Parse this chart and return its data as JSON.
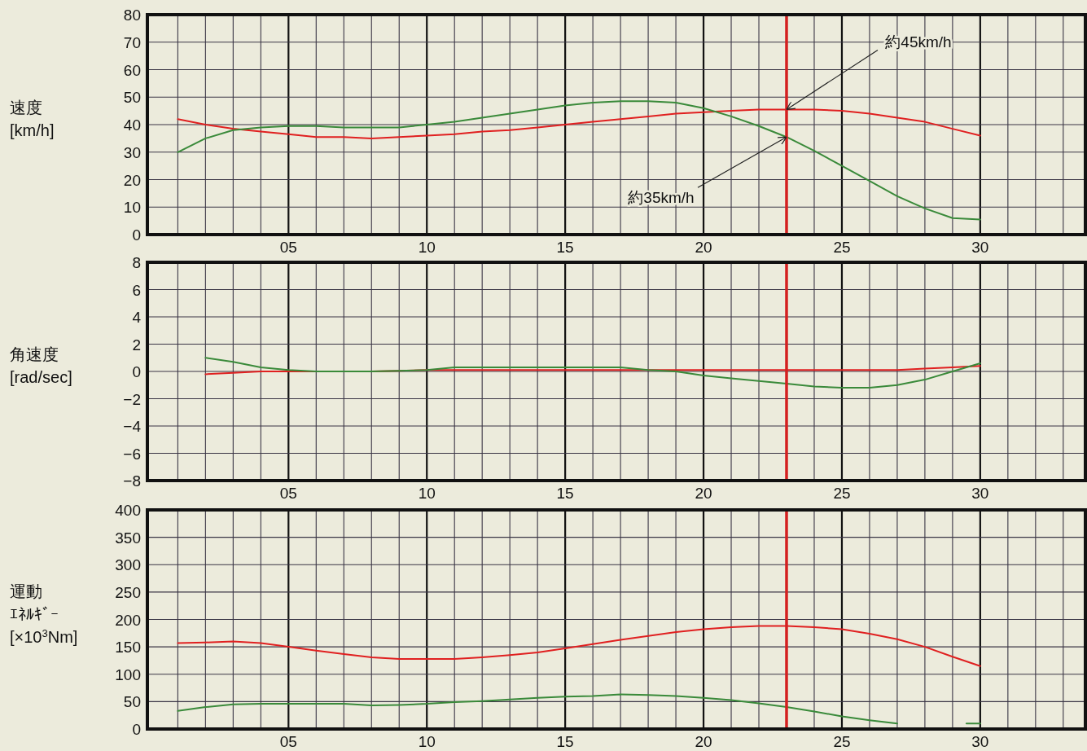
{
  "chart_data": [
    {
      "type": "line",
      "ylabel": "速度\n[km/h]",
      "grid": true,
      "xlim": [
        -0.1,
        33.8
      ],
      "ylim": [
        0,
        80
      ],
      "xticks": [
        {
          "value": 1,
          "label": null
        },
        {
          "value": 2,
          "label": null
        },
        {
          "value": 3,
          "label": null
        },
        {
          "value": 4,
          "label": null
        },
        {
          "value": 5,
          "label": "05"
        },
        {
          "value": 6,
          "label": null
        },
        {
          "value": 7,
          "label": null
        },
        {
          "value": 8,
          "label": null
        },
        {
          "value": 9,
          "label": null
        },
        10,
        {
          "value": 11,
          "label": null
        },
        {
          "value": 12,
          "label": null
        },
        {
          "value": 13,
          "label": null
        },
        {
          "value": 14,
          "label": null
        },
        15,
        {
          "value": 16,
          "label": null
        },
        {
          "value": 17,
          "label": null
        },
        {
          "value": 18,
          "label": null
        },
        {
          "value": 19,
          "label": null
        },
        20,
        {
          "value": 21,
          "label": null
        },
        {
          "value": 22,
          "label": null
        },
        {
          "value": 23,
          "label": null
        },
        {
          "value": 24,
          "label": null
        },
        25,
        {
          "value": 26,
          "label": null
        },
        {
          "value": 27,
          "label": null
        },
        {
          "value": 28,
          "label": null
        },
        {
          "value": 29,
          "label": null
        },
        30,
        {
          "value": 31,
          "label": null
        },
        {
          "value": 32,
          "label": null
        },
        {
          "value": 33,
          "label": null
        }
      ],
      "yticks": [
        0,
        10,
        20,
        30,
        40,
        50,
        60,
        70,
        80
      ],
      "x": [
        1,
        2,
        3,
        4,
        5,
        6,
        7,
        8,
        9,
        10,
        11,
        12,
        13,
        14,
        15,
        16,
        17,
        18,
        19,
        20,
        21,
        22,
        23,
        24,
        25,
        26,
        27,
        28,
        29,
        30
      ],
      "series": [
        {
          "color": "#e02020",
          "values": [
            42,
            40,
            38.5,
            37.5,
            36.5,
            35.5,
            35.5,
            35,
            35.5,
            36,
            36.5,
            37.5,
            38,
            39,
            40,
            41,
            42,
            43,
            44,
            44.5,
            45,
            45.5,
            45.5,
            45.5,
            45,
            44,
            42.5,
            41,
            38.5,
            36
          ]
        },
        {
          "color": "#3a8a3a",
          "values": [
            30,
            35,
            38,
            39,
            39.5,
            39.5,
            39,
            39,
            39,
            40,
            41,
            42.5,
            44,
            45.5,
            47,
            48,
            48.5,
            48.5,
            48,
            46,
            43,
            39.5,
            35.5,
            30.5,
            25,
            19.5,
            14,
            9.5,
            6,
            5.5
          ]
        }
      ],
      "ref_lines": [
        {
          "axis": "x",
          "value": 23,
          "color": "#d42020"
        }
      ],
      "annotations": [
        {
          "text": "約45km/h",
          "x": 23,
          "y": 45.5
        },
        {
          "text": "約35km/h",
          "x": 23,
          "y": 35.5
        }
      ]
    },
    {
      "type": "line",
      "ylabel": "角速度\n[rad/sec]",
      "grid": true,
      "xlim": [
        -0.1,
        33.8
      ],
      "ylim": [
        -8,
        8
      ],
      "xticks": [
        {
          "value": 1,
          "label": null
        },
        {
          "value": 2,
          "label": null
        },
        {
          "value": 3,
          "label": null
        },
        {
          "value": 4,
          "label": null
        },
        {
          "value": 5,
          "label": "05"
        },
        {
          "value": 6,
          "label": null
        },
        {
          "value": 7,
          "label": null
        },
        {
          "value": 8,
          "label": null
        },
        {
          "value": 9,
          "label": null
        },
        10,
        {
          "value": 11,
          "label": null
        },
        {
          "value": 12,
          "label": null
        },
        {
          "value": 13,
          "label": null
        },
        {
          "value": 14,
          "label": null
        },
        15,
        {
          "value": 16,
          "label": null
        },
        {
          "value": 17,
          "label": null
        },
        {
          "value": 18,
          "label": null
        },
        {
          "value": 19,
          "label": null
        },
        20,
        {
          "value": 21,
          "label": null
        },
        {
          "value": 22,
          "label": null
        },
        {
          "value": 23,
          "label": null
        },
        {
          "value": 24,
          "label": null
        },
        25,
        {
          "value": 26,
          "label": null
        },
        {
          "value": 27,
          "label": null
        },
        {
          "value": 28,
          "label": null
        },
        {
          "value": 29,
          "label": null
        },
        30,
        {
          "value": 31,
          "label": null
        },
        {
          "value": 32,
          "label": null
        },
        {
          "value": 33,
          "label": null
        }
      ],
      "yticks": [
        -8,
        -6,
        -4,
        -2,
        0,
        2,
        4,
        6,
        8
      ],
      "x": [
        2,
        3,
        4,
        5,
        6,
        8,
        10,
        11,
        15,
        17,
        18,
        19,
        20,
        21,
        22,
        23,
        24,
        25,
        26,
        27,
        28,
        29,
        30
      ],
      "series": [
        {
          "color": "#e02020",
          "values": [
            -0.2,
            -0.1,
            0,
            0,
            0,
            0,
            0.1,
            0.1,
            0.1,
            0.1,
            0.1,
            0.1,
            0.1,
            0.1,
            0.1,
            0.1,
            0.1,
            0.1,
            0.1,
            0.1,
            0.2,
            0.3,
            0.4
          ]
        },
        {
          "color": "#3a8a3a",
          "values": [
            1.0,
            0.7,
            0.3,
            0.1,
            0,
            0,
            0.1,
            0.3,
            0.3,
            0.3,
            0.1,
            0,
            -0.3,
            -0.5,
            -0.7,
            -0.9,
            -1.1,
            -1.2,
            -1.2,
            -1.0,
            -0.6,
            0,
            0.6
          ]
        }
      ],
      "ref_lines": [
        {
          "axis": "x",
          "value": 23,
          "color": "#d42020"
        }
      ]
    },
    {
      "type": "line",
      "ylabel": "運動ｴﾈﾙｷﾞｰ\n[×10$^{3}$Nm]",
      "grid": true,
      "xlim": [
        -0.1,
        33.8
      ],
      "ylim": [
        0,
        400
      ],
      "xticks": [
        {
          "value": 1,
          "label": null
        },
        {
          "value": 2,
          "label": null
        },
        {
          "value": 3,
          "label": null
        },
        {
          "value": 4,
          "label": null
        },
        {
          "value": 5,
          "label": "05"
        },
        {
          "value": 6,
          "label": null
        },
        {
          "value": 7,
          "label": null
        },
        {
          "value": 8,
          "label": null
        },
        {
          "value": 9,
          "label": null
        },
        10,
        {
          "value": 11,
          "label": null
        },
        {
          "value": 12,
          "label": null
        },
        {
          "value": 13,
          "label": null
        },
        {
          "value": 14,
          "label": null
        },
        15,
        {
          "value": 16,
          "label": null
        },
        {
          "value": 17,
          "label": null
        },
        {
          "value": 18,
          "label": null
        },
        {
          "value": 19,
          "label": null
        },
        20,
        {
          "value": 21,
          "label": null
        },
        {
          "value": 22,
          "label": null
        },
        {
          "value": 23,
          "label": null
        },
        {
          "value": 24,
          "label": null
        },
        25,
        {
          "value": 26,
          "label": null
        },
        {
          "value": 27,
          "label": null
        },
        {
          "value": 28,
          "label": null
        },
        {
          "value": 29,
          "label": null
        },
        30,
        {
          "value": 31,
          "label": null
        },
        {
          "value": 32,
          "label": null
        },
        {
          "value": 33,
          "label": null
        }
      ],
      "yticks": [
        0,
        50,
        100,
        150,
        200,
        250,
        300,
        350,
        400
      ],
      "series": [
        {
          "color": "#e02020",
          "x": [
            1,
            2,
            3,
            4,
            5,
            6,
            7,
            8,
            9,
            10,
            11,
            12,
            13,
            14,
            15,
            16,
            17,
            18,
            19,
            20,
            21,
            22,
            23,
            24,
            25,
            26,
            27,
            28,
            29,
            30
          ],
          "values": [
            157,
            158,
            160,
            157,
            150,
            143,
            137,
            131,
            128,
            128,
            128,
            131,
            135,
            140,
            147,
            155,
            163,
            170,
            177,
            182,
            186,
            188,
            188,
            186,
            182,
            174,
            164,
            150,
            132,
            115
          ]
        },
        {
          "color": "#3a8a3a",
          "x": [
            1,
            2,
            3,
            4,
            5,
            6,
            7,
            8,
            9,
            10,
            11,
            12,
            13,
            14,
            15,
            16,
            17,
            18,
            19,
            20,
            21,
            22,
            23,
            24,
            25,
            26,
            27
          ],
          "values": [
            33,
            40,
            45,
            46,
            46,
            46,
            46,
            43,
            44,
            46,
            49,
            51,
            54,
            57,
            59,
            60,
            63,
            62,
            60,
            57,
            53,
            47,
            40,
            32,
            23,
            16,
            10
          ]
        },
        {
          "color": "#3a8a3a",
          "x": [
            29.5,
            30
          ],
          "values": [
            10,
            10
          ]
        }
      ],
      "ref_lines": [
        {
          "axis": "x",
          "value": 23,
          "color": "#d42020"
        }
      ]
    }
  ]
}
